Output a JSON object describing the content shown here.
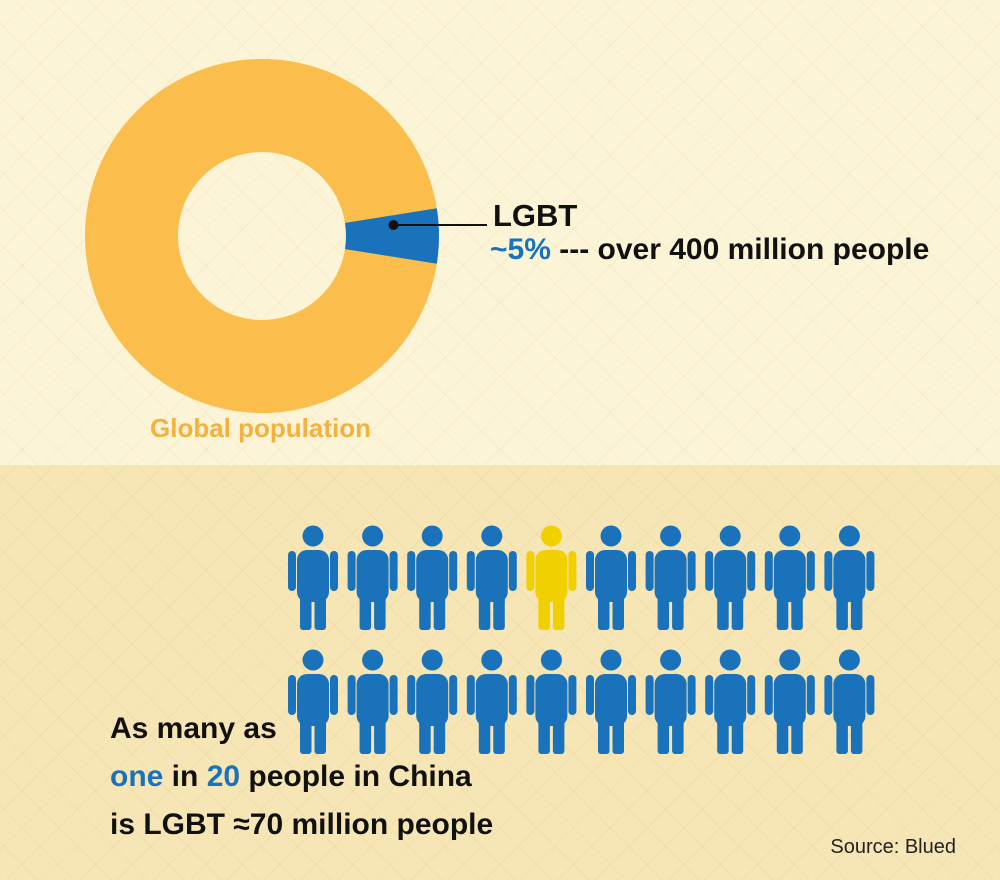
{
  "colors": {
    "donut_main": "#fbbd4c",
    "lgbt_slice": "#1a72ba",
    "person": "#1a72ba",
    "highlight_person": "#f0d000",
    "global_label": "#f4b23c"
  },
  "chart_data": [
    {
      "type": "pie",
      "style": "donut",
      "slices": [
        {
          "label": "LGBT",
          "value": 5,
          "color": "#1a72ba"
        },
        {
          "label": "",
          "value": 95,
          "color": "#fbbd4c"
        }
      ],
      "caption": "Global population",
      "annotation": {
        "label": "LGBT",
        "prefix": "~",
        "value": "5%",
        "suffix": " --- over 400 million people"
      }
    },
    {
      "type": "pictograph",
      "total": 20,
      "highlighted": 1,
      "rows": 2,
      "per_row": 10,
      "highlight_position": {
        "row": 1,
        "column": 5
      },
      "icon": "person-icon"
    }
  ],
  "china_text": {
    "line1": "As many as",
    "line2_one": "one",
    "line2_in": " in ",
    "line2_twenty": "20",
    "line2_rest": " people in China",
    "line3": "is LGBT ≈70 million people"
  },
  "source": "Source: Blued"
}
